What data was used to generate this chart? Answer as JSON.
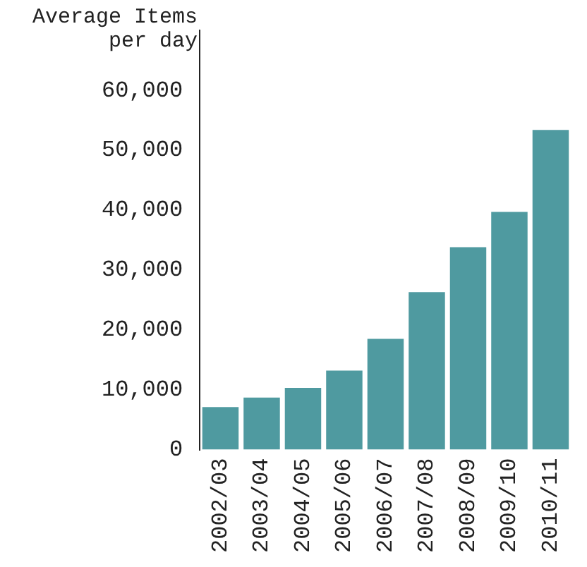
{
  "chart_data": {
    "type": "bar",
    "ylabel": "Average Items\nper day",
    "categories": [
      "2002/03",
      "2003/04",
      "2004/05",
      "2005/06",
      "2006/07",
      "2007/08",
      "2008/09",
      "2009/10",
      "2010/11"
    ],
    "values": [
      7100,
      8700,
      10300,
      13200,
      18500,
      26300,
      33800,
      39700,
      53400
    ],
    "color": "#4f9aa0",
    "ylim": [
      0,
      70000
    ],
    "yticks": [
      0,
      {
        "value": 10000,
        "label": "10,000"
      },
      {
        "value": 20000,
        "label": "20,000"
      },
      {
        "value": 30000,
        "label": "30,000"
      },
      {
        "value": 40000,
        "label": "40,000"
      },
      {
        "value": 50000,
        "label": "50,000"
      },
      {
        "value": 60000,
        "label": "60,000"
      }
    ],
    "grid": false
  }
}
